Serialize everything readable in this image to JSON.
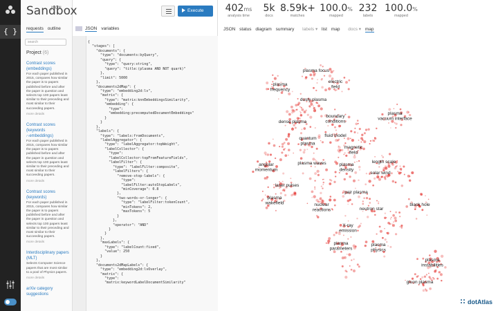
{
  "brand": {
    "name": "Sandbox",
    "sup": "JSON"
  },
  "sidebar": {
    "tabs": [
      "requests",
      "outline"
    ],
    "search_placeholder": "search",
    "project_label": "Project",
    "project_count": "(6)",
    "items": [
      {
        "title": "Contrast scores (embeddings)",
        "desc": "For each paper published in 2015, compares how similar the paper is to papers published before and after the paper in question and selects top 100 papers least similar to their preceding and most similar to their succeeding papers.",
        "more": "more details"
      },
      {
        "title": "Contrast scores (keywords ∩embeddings)",
        "desc": "For each paper published in 2015, compares how similar the paper is to papers published before and after the paper in question and selects top 100 papers least similar to their preceding and most similar to their succeeding papers.",
        "more": "more details"
      },
      {
        "title": "Contrast scores (keywords)",
        "desc": "For each paper published in 2015, compares how similar the paper is to papers published before and after the paper in question and selects top 100 papers least similar to their preceding and most similar to their succeeding papers.",
        "more": "more details"
      },
      {
        "title": "Interdisciplinary papers (MLT)",
        "desc": "Selects Computer Science papers that are most similar to a pool of Physics papers.",
        "more": "more details"
      },
      {
        "title": "arXiv category suggestions",
        "desc": "",
        "more": ""
      }
    ]
  },
  "editor": {
    "execute_label": "Execute",
    "tabs": [
      "JSON",
      "variables"
    ],
    "code": [
      "{",
      "  \"stages\": [",
      "    \"documents\": {",
      "      \"type\": \"documents:byQuery\",",
      "      \"query\": {",
      "        \"type\": \"query:string\",",
      "        \"query\": \"title:(plasma AND NOT quark)\"",
      "      },",
      "      \"limit\": 5000",
      "    },",
      "    \"documents2dMap\": {",
      "      \"type\": \"embedding2d:lv\",",
      "      \"matrix\": {",
      "        \"type\": \"matrix:knnEmbeddingsSimilarity\",",
      "        \"embedding\": {",
      "          \"type\":",
      "          \"embedding:precomputedDocumentEmbeddings\"",
      "        }",
      "      }",
      "    },",
      "    \"labels\": {",
      "      \"type\": \"labels:fromDocuments\",",
      "      \"labelAggregator\": {",
      "        \"type\": \"labelAggregator:topWeight\",",
      "        \"labelCollector\": {",
      "          \"type\":",
      "          \"labelCollector:topFromFeatureFields\",",
      "          \"labelFilter\": {",
      "            \"type\": \"labelFilter:composite\",",
      "            \"labelFilters\": {",
      "              \"remove-stop-labels\": {",
      "                \"type\":",
      "                \"labelFilter:autoStopLabels\",",
      "                \"minCoverage\": 0.8",
      "              },",
      "              \"two-words-or-longer\": {",
      "                \"type\": \"labelFilter:tokenCount\",",
      "                \"minTokens\": 2,",
      "                \"maxTokens\": 5",
      "              }",
      "            },",
      "            \"operator\": \"AND\"",
      "          }",
      "        }",
      "      },",
      "      \"maxLabels\": {",
      "        \"type\": \"labelCount:fixed\",",
      "        \"value\": 250",
      "      }",
      "    },",
      "    \"documents2dMapLabels\": {",
      "      \"type\": \"embedding2d:lvOverlay\",",
      "      \"matrix\": {",
      "        \"type\":",
      "        \"matrix:keywordLabelDocumentSimilarity\""
    ]
  },
  "stats": [
    {
      "value": "402",
      "unit": "ms",
      "label": "analysis time"
    },
    {
      "value": "5k",
      "unit": "",
      "label": "docs"
    },
    {
      "value": "8.59k+",
      "unit": "",
      "label": "matches"
    },
    {
      "value": "100.0",
      "unit": "%",
      "label": "mapped"
    },
    {
      "value": "232",
      "unit": "",
      "label": "labels"
    },
    {
      "value": "100.0",
      "unit": "%",
      "label": "mapped"
    }
  ],
  "view_tabs": [
    "JSON",
    "status",
    "diagram",
    "summary",
    "labels ▾",
    "list",
    "map",
    "docs ▾",
    "map"
  ],
  "map_labels": [
    "plasma focus",
    "plasma frequency",
    "electric field",
    "dusty plasma",
    "boundary conditions",
    "plasma vacuum interface",
    "dense plasma",
    "fluid model",
    "quantum plasma",
    "magnetic field",
    "angular momentum",
    "plasma waves",
    "plasma density",
    "length scale",
    "solar wind",
    "laser pulses",
    "pair plasma",
    "plasma wakefield",
    "nuclear reactions",
    "neutron star",
    "black hole",
    "X-ray emission",
    "plasma parameters",
    "plasma physics",
    "plasma instabilities",
    "gluon plasma"
  ],
  "watermark": "dotAtlas",
  "colors": {
    "accent": "#2a7bc0",
    "points": "#e53935"
  }
}
